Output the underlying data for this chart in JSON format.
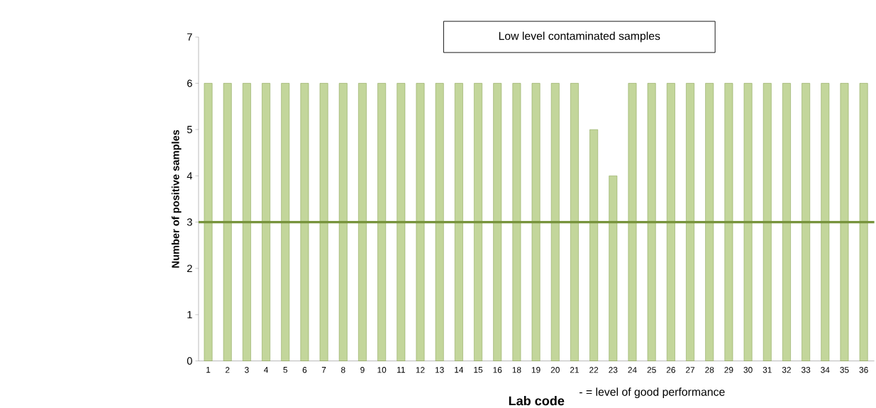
{
  "chart_data": {
    "type": "bar",
    "title": "Low level contaminated samples",
    "xlabel": "Lab code",
    "ylabel": "Number of positive samples",
    "categories": [
      "1",
      "2",
      "3",
      "4",
      "5",
      "6",
      "7",
      "8",
      "9",
      "10",
      "11",
      "12",
      "13",
      "14",
      "15",
      "16",
      "18",
      "19",
      "20",
      "21",
      "22",
      "23",
      "24",
      "25",
      "26",
      "27",
      "28",
      "29",
      "30",
      "31",
      "32",
      "33",
      "34",
      "35",
      "36"
    ],
    "values": [
      6,
      6,
      6,
      6,
      6,
      6,
      6,
      6,
      6,
      6,
      6,
      6,
      6,
      6,
      6,
      6,
      6,
      6,
      6,
      6,
      5,
      4,
      6,
      6,
      6,
      6,
      6,
      6,
      6,
      6,
      6,
      6,
      6,
      6,
      6
    ],
    "color": "#c3d69b",
    "ylim": [
      0,
      7
    ],
    "yticks": [
      0,
      1,
      2,
      3,
      4,
      5,
      6,
      7
    ],
    "ref_lines": [
      {
        "axis": "y",
        "value": 3,
        "color": "#77933c"
      }
    ],
    "annotations": [
      "- = level of good performance"
    ]
  }
}
